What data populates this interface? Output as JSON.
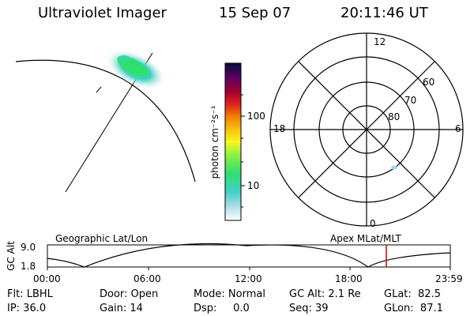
{
  "header": {
    "instrument": "Ultraviolet Imager",
    "date": "15 Sep 07",
    "time": "20:11:46 UT"
  },
  "colorbar": {
    "unit_label": "photon cm⁻²s⁻¹",
    "ticks": [
      "100",
      "10"
    ]
  },
  "polar_plot": {
    "mlt_labels": {
      "top": "12",
      "left": "18",
      "right": "6",
      "bottom": "0"
    },
    "lat_labels": [
      "60",
      "70",
      "80"
    ]
  },
  "orbit_plot": {
    "left_title": "Geographic Lat/Lon",
    "right_title": "Apex MLat/MLT",
    "y_axis_label": "GC Alt",
    "y_ticks": [
      "9.0",
      "1.8"
    ],
    "x_ticks": [
      "00:00",
      "06:00",
      "12:00",
      "18:00",
      "23:59"
    ],
    "marker_color": "#cc0000"
  },
  "footer": {
    "flt": "Flt: LBHL",
    "ip": "IP: 36.0",
    "door": "Door: Open",
    "gain": "Gain: 14",
    "mode": "Mode: Normal",
    "dsp": "Dsp:     0.0",
    "gc_alt": "GC Alt: 2.1 Re",
    "seq": "Seq: 39",
    "glat": "GLat:  82.5",
    "glon": "GLon:  87.1"
  }
}
